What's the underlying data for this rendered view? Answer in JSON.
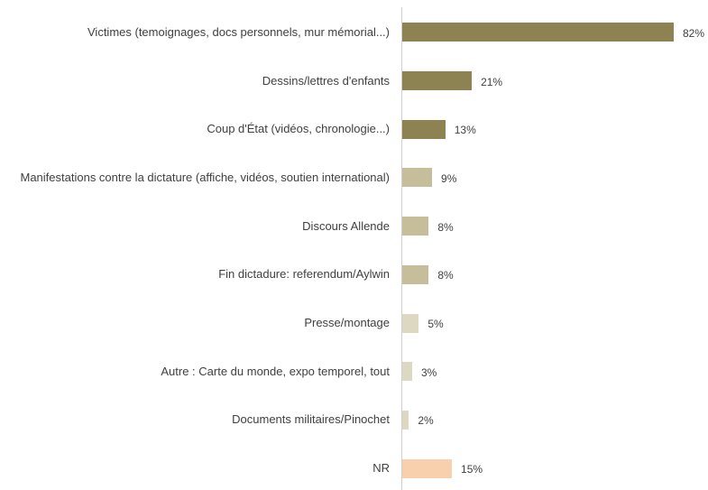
{
  "chart_data": {
    "type": "bar",
    "orientation": "horizontal",
    "categories": [
      "Victimes (temoignages, docs personnels, mur mémorial...)",
      "Dessins/lettres d'enfants",
      "Coup d'État (vidéos, chronologie...)",
      "Manifestations contre la dictature (affiche, vidéos, soutien international)",
      "Discours Allende",
      "Fin dictadure: referendum/Aylwin",
      "Presse/montage",
      "Autre : Carte du monde, expo temporel, tout",
      "Documents militaires/Pinochet",
      "NR"
    ],
    "values": [
      82,
      21,
      13,
      9,
      8,
      8,
      5,
      3,
      2,
      15
    ],
    "value_labels": [
      "82%",
      "21%",
      "13%",
      "9%",
      "8%",
      "8%",
      "5%",
      "3%",
      "2%",
      "15%"
    ],
    "colors": [
      "#8c8252",
      "#8c8252",
      "#8c8252",
      "#c6be9a",
      "#c6be9a",
      "#c6be9a",
      "#ddd8c2",
      "#ddd8c2",
      "#ddd8c2",
      "#f9d0ad"
    ]
  }
}
